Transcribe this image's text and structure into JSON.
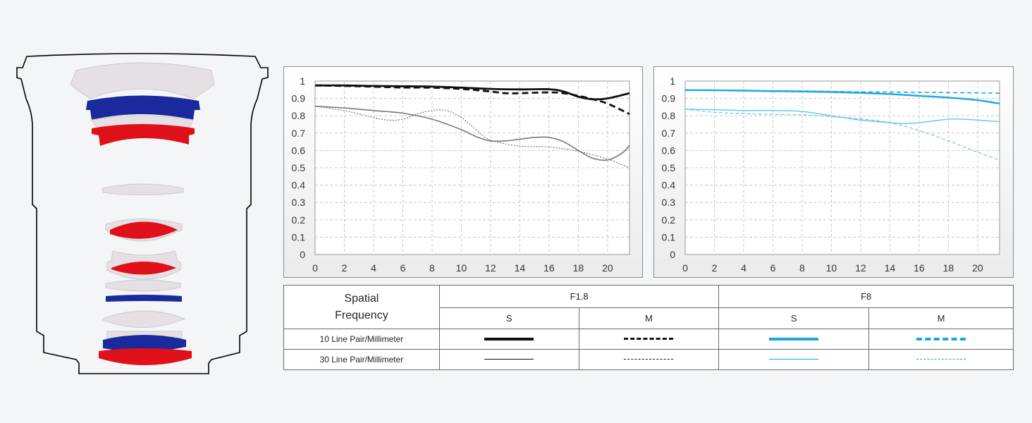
{
  "colors": {
    "f18_10": "#111111",
    "f18_30": "#777777",
    "f8_10": "#1ba7de",
    "f8_30": "#6cc6ea",
    "lens_blue": "#1a2a9c",
    "lens_red": "#e0101a",
    "lens_gray": "#e4e0e4"
  },
  "legend": {
    "spatial_line1": "Spatial",
    "spatial_line2": "Frequency",
    "aperture_1": "F1.8",
    "aperture_2": "F8",
    "s_label": "S",
    "m_label": "M",
    "row_10": "10 Line Pair/Millimeter",
    "row_30": "30 Line Pair/Millimeter"
  },
  "chart_data": [
    {
      "type": "line",
      "title": "",
      "xlim": [
        0,
        21.5
      ],
      "ylim": [
        0,
        1
      ],
      "x_ticks": [
        "0",
        "2",
        "4",
        "6",
        "8",
        "10",
        "12",
        "14",
        "16",
        "18",
        "20"
      ],
      "y_ticks": [
        "0",
        "0.1",
        "0.2",
        "0.3",
        "0.4",
        "0.5",
        "0.6",
        "0.7",
        "0.8",
        "0.9",
        "1"
      ],
      "grid": true,
      "series": [
        {
          "key": "s10",
          "color": "black",
          "width": 2.8,
          "dash": "",
          "points": [
            [
              0,
              0.975
            ],
            [
              2,
              0.975
            ],
            [
              4,
              0.972
            ],
            [
              6,
              0.97
            ],
            [
              8,
              0.968
            ],
            [
              10,
              0.962
            ],
            [
              12,
              0.955
            ],
            [
              14,
              0.952
            ],
            [
              16,
              0.953
            ],
            [
              17,
              0.94
            ],
            [
              18,
              0.91
            ],
            [
              19,
              0.895
            ],
            [
              20,
              0.9
            ],
            [
              21.5,
              0.93
            ]
          ]
        },
        {
          "key": "m10",
          "color": "black",
          "width": 2.8,
          "dash": "9,5",
          "points": [
            [
              0,
              0.975
            ],
            [
              2,
              0.972
            ],
            [
              4,
              0.968
            ],
            [
              6,
              0.963
            ],
            [
              8,
              0.962
            ],
            [
              10,
              0.955
            ],
            [
              12,
              0.94
            ],
            [
              13,
              0.93
            ],
            [
              14,
              0.93
            ],
            [
              16,
              0.935
            ],
            [
              17,
              0.93
            ],
            [
              18,
              0.915
            ],
            [
              19,
              0.895
            ],
            [
              20,
              0.87
            ],
            [
              21.5,
              0.81
            ]
          ]
        },
        {
          "key": "s30",
          "color": "gray",
          "width": 1.6,
          "dash": "",
          "points": [
            [
              0,
              0.855
            ],
            [
              2,
              0.845
            ],
            [
              4,
              0.83
            ],
            [
              6,
              0.815
            ],
            [
              8,
              0.78
            ],
            [
              10,
              0.72
            ],
            [
              11,
              0.68
            ],
            [
              12,
              0.655
            ],
            [
              13,
              0.655
            ],
            [
              14,
              0.665
            ],
            [
              15,
              0.675
            ],
            [
              16,
              0.675
            ],
            [
              17,
              0.65
            ],
            [
              18,
              0.6
            ],
            [
              19,
              0.555
            ],
            [
              20,
              0.545
            ],
            [
              21,
              0.585
            ],
            [
              21.5,
              0.63
            ]
          ]
        },
        {
          "key": "m30",
          "color": "gray",
          "width": 1.2,
          "dash": "2,2",
          "points": [
            [
              0,
              0.855
            ],
            [
              2,
              0.83
            ],
            [
              4,
              0.79
            ],
            [
              5,
              0.775
            ],
            [
              6,
              0.78
            ],
            [
              7,
              0.81
            ],
            [
              8,
              0.83
            ],
            [
              9,
              0.83
            ],
            [
              10,
              0.79
            ],
            [
              11,
              0.72
            ],
            [
              12,
              0.66
            ],
            [
              14,
              0.625
            ],
            [
              16,
              0.62
            ],
            [
              18,
              0.595
            ],
            [
              20,
              0.55
            ],
            [
              21.5,
              0.5
            ]
          ]
        }
      ]
    },
    {
      "type": "line",
      "title": "",
      "xlim": [
        0,
        21.5
      ],
      "ylim": [
        0,
        1
      ],
      "x_ticks": [
        "0",
        "2",
        "4",
        "6",
        "8",
        "10",
        "12",
        "14",
        "16",
        "18",
        "20"
      ],
      "y_ticks": [
        "0",
        "0.1",
        "0.2",
        "0.3",
        "0.4",
        "0.5",
        "0.6",
        "0.7",
        "0.8",
        "0.9",
        "1"
      ],
      "grid": true,
      "series": [
        {
          "key": "s10",
          "color": "blue",
          "width": 2.4,
          "dash": "",
          "points": [
            [
              0,
              0.948
            ],
            [
              2,
              0.947
            ],
            [
              4,
              0.945
            ],
            [
              6,
              0.942
            ],
            [
              8,
              0.94
            ],
            [
              10,
              0.937
            ],
            [
              12,
              0.932
            ],
            [
              14,
              0.925
            ],
            [
              16,
              0.915
            ],
            [
              18,
              0.905
            ],
            [
              20,
              0.89
            ],
            [
              21.5,
              0.87
            ]
          ]
        },
        {
          "key": "m10",
          "color": "blue",
          "width": 1.6,
          "dash": "6,4",
          "points": [
            [
              0,
              0.948
            ],
            [
              4,
              0.946
            ],
            [
              8,
              0.943
            ],
            [
              12,
              0.938
            ],
            [
              16,
              0.935
            ],
            [
              20,
              0.932
            ],
            [
              21.5,
              0.93
            ]
          ]
        },
        {
          "key": "s30",
          "color": "lightblue",
          "width": 1.5,
          "dash": "",
          "points": [
            [
              0,
              0.838
            ],
            [
              2,
              0.835
            ],
            [
              4,
              0.83
            ],
            [
              6,
              0.83
            ],
            [
              8,
              0.825
            ],
            [
              10,
              0.8
            ],
            [
              12,
              0.775
            ],
            [
              14,
              0.76
            ],
            [
              15,
              0.755
            ],
            [
              16,
              0.76
            ],
            [
              18,
              0.78
            ],
            [
              19,
              0.78
            ],
            [
              20,
              0.775
            ],
            [
              21.5,
              0.765
            ]
          ]
        },
        {
          "key": "m30",
          "color": "lightblue",
          "width": 1.2,
          "dash": "5,3",
          "points": [
            [
              0,
              0.838
            ],
            [
              2,
              0.82
            ],
            [
              4,
              0.812
            ],
            [
              6,
              0.808
            ],
            [
              8,
              0.805
            ],
            [
              10,
              0.795
            ],
            [
              12,
              0.782
            ],
            [
              14,
              0.76
            ],
            [
              16,
              0.715
            ],
            [
              18,
              0.655
            ],
            [
              20,
              0.59
            ],
            [
              21.5,
              0.545
            ]
          ]
        }
      ]
    }
  ]
}
